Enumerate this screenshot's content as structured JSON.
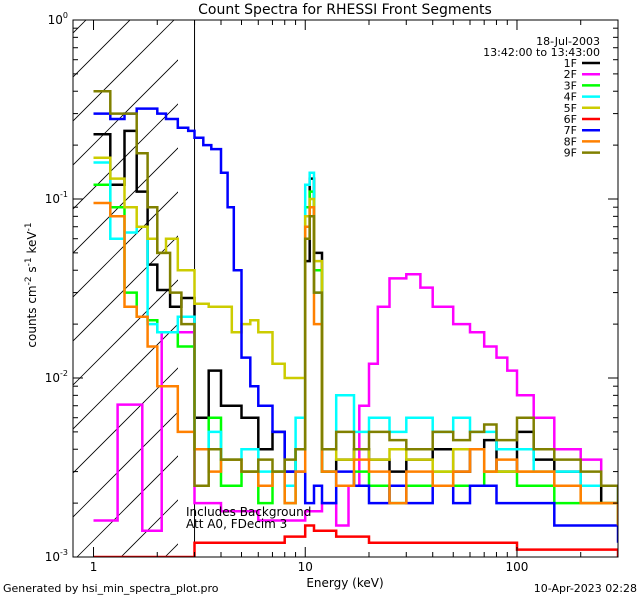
{
  "footer": {
    "generated_by": "Generated by hsi_min_spectra_plot.pro",
    "timestamp": "10-Apr-2023 02:28"
  },
  "chart_data": {
    "type": "line",
    "title": "Count Spectra for RHESSI Front Segments",
    "xlabel": "Energy (keV)",
    "ylabel_parts": {
      "a": "counts cm",
      "b": "-2",
      "c": " s",
      "d": "-1",
      "e": " keV",
      "f": "-1"
    },
    "x_scale": "log",
    "y_scale": "log",
    "xlim": [
      0.8,
      300
    ],
    "ylim": [
      0.001,
      1
    ],
    "x_ticks": [
      {
        "v": 1,
        "label": "1"
      },
      {
        "v": 10,
        "label": "10"
      },
      {
        "v": 100,
        "label": "100"
      }
    ],
    "y_ticks": [
      {
        "v": 0.001,
        "m": "10",
        "e": "-3"
      },
      {
        "v": 0.01,
        "m": "10",
        "e": "-2"
      },
      {
        "v": 0.1,
        "m": "10",
        "e": "-1"
      },
      {
        "v": 1,
        "m": "10",
        "e": "0"
      }
    ],
    "date": "18-Jul-2003",
    "time_range": "13:42:00 to 13:43:00",
    "annotation_lines": [
      "Includes Background",
      "Att A0, FDecim 3"
    ],
    "hatched_region_kev": [
      0.8,
      3.0
    ],
    "legend_position": "top-right",
    "series": [
      {
        "name": "1F",
        "color": "#000000",
        "x": [
          1.0,
          1.2,
          1.4,
          1.6,
          1.8,
          2.0,
          2.3,
          2.6,
          3.0,
          3.5,
          4.0,
          5.0,
          6.0,
          7.0,
          8.0,
          9.0,
          10,
          10.5,
          11,
          12,
          14,
          17,
          20,
          25,
          30,
          40,
          50,
          60,
          70,
          80,
          100,
          120,
          150,
          200,
          250,
          300
        ],
        "y": [
          0.23,
          0.12,
          0.24,
          0.11,
          0.043,
          0.031,
          0.025,
          0.028,
          0.006,
          0.011,
          0.007,
          0.006,
          0.004,
          0.005,
          0.003,
          0.004,
          0.045,
          0.13,
          0.05,
          0.003,
          0.0035,
          0.004,
          0.0035,
          0.003,
          0.0035,
          0.004,
          0.003,
          0.004,
          0.0045,
          0.003,
          0.005,
          0.0035,
          0.003,
          0.0025,
          0.002,
          0.0015
        ]
      },
      {
        "name": "2F",
        "color": "#ff00ff",
        "x": [
          1.0,
          1.3,
          1.5,
          1.7,
          1.9,
          2.1,
          3.0,
          4.0,
          6.0,
          8.0,
          10,
          12,
          14,
          16,
          18,
          20,
          22,
          25,
          30,
          35,
          40,
          50,
          60,
          70,
          80,
          90,
          100,
          120,
          150,
          200,
          250,
          300
        ],
        "y": [
          0.0016,
          0.0071,
          0.0071,
          0.0014,
          0.0014,
          0.018,
          0.002,
          0.0018,
          0.0016,
          0.0016,
          0.0018,
          0.002,
          0.0015,
          0.0025,
          0.007,
          0.012,
          0.025,
          0.036,
          0.038,
          0.032,
          0.025,
          0.02,
          0.018,
          0.015,
          0.013,
          0.011,
          0.008,
          0.006,
          0.004,
          0.0035,
          0.0025,
          0.002
        ]
      },
      {
        "name": "3F",
        "color": "#00ff00",
        "x": [
          1.0,
          1.2,
          1.4,
          1.6,
          1.8,
          2.0,
          2.5,
          3.0,
          3.5,
          4.0,
          5.0,
          6.0,
          7.0,
          8.0,
          9.0,
          10,
          10.5,
          11,
          12,
          14,
          17,
          20,
          25,
          30,
          40,
          50,
          70,
          100,
          150,
          200,
          300
        ],
        "y": [
          0.12,
          0.09,
          0.03,
          0.022,
          0.021,
          0.018,
          0.015,
          0.004,
          0.006,
          0.0025,
          0.003,
          0.002,
          0.003,
          0.002,
          0.004,
          0.09,
          0.11,
          0.04,
          0.003,
          0.0025,
          0.003,
          0.0025,
          0.002,
          0.0025,
          0.003,
          0.0025,
          0.003,
          0.0025,
          0.002,
          0.002,
          0.0015
        ]
      },
      {
        "name": "4F",
        "color": "#00ffff",
        "x": [
          1.0,
          1.2,
          1.4,
          1.6,
          1.8,
          2.0,
          2.5,
          3.0,
          3.5,
          4.0,
          5.0,
          6.0,
          7.0,
          8.0,
          9.0,
          10,
          10.5,
          11,
          12,
          14,
          17,
          20,
          25,
          30,
          40,
          50,
          60,
          70,
          80,
          100,
          120,
          150,
          200,
          300
        ],
        "y": [
          0.16,
          0.06,
          0.065,
          0.07,
          0.02,
          0.018,
          0.022,
          0.004,
          0.005,
          0.0035,
          0.004,
          0.003,
          0.003,
          0.0025,
          0.006,
          0.12,
          0.14,
          0.03,
          0.004,
          0.008,
          0.005,
          0.006,
          0.005,
          0.006,
          0.005,
          0.006,
          0.005,
          0.005,
          0.004,
          0.004,
          0.003,
          0.003,
          0.0025,
          0.0015
        ]
      },
      {
        "name": "5F",
        "color": "#cccc00",
        "x": [
          1.0,
          1.2,
          1.4,
          1.6,
          1.8,
          2.0,
          2.2,
          2.5,
          3.0,
          3.5,
          4.0,
          4.5,
          5.0,
          5.5,
          6.0,
          7.0,
          8.0,
          9.0,
          10,
          10.5,
          11,
          12,
          14,
          17,
          20,
          25,
          30,
          40,
          50,
          70,
          100,
          150,
          200,
          300
        ],
        "y": [
          0.17,
          0.13,
          0.09,
          0.07,
          0.06,
          0.05,
          0.06,
          0.04,
          0.026,
          0.025,
          0.025,
          0.018,
          0.02,
          0.021,
          0.018,
          0.012,
          0.01,
          0.01,
          0.08,
          0.1,
          0.045,
          0.004,
          0.0035,
          0.004,
          0.0035,
          0.004,
          0.0035,
          0.003,
          0.004,
          0.003,
          0.003,
          0.0025,
          0.002,
          0.0015
        ]
      },
      {
        "name": "6F",
        "color": "#ff0000",
        "x": [
          1.0,
          1.5,
          2.0,
          3.0,
          5.0,
          8.0,
          10,
          11,
          14,
          20,
          30,
          50,
          100,
          200,
          300
        ],
        "y": [
          0.001,
          0.001,
          0.001,
          0.0012,
          0.0012,
          0.0013,
          0.0015,
          0.0014,
          0.0013,
          0.0012,
          0.0012,
          0.0012,
          0.0011,
          0.0011,
          0.001
        ]
      },
      {
        "name": "7F",
        "color": "#0000ff",
        "x": [
          1.0,
          1.2,
          1.4,
          1.6,
          1.8,
          2.0,
          2.2,
          2.5,
          2.8,
          3.0,
          3.3,
          3.6,
          4.0,
          4.3,
          4.6,
          5.0,
          5.5,
          6.0,
          7.0,
          8.0,
          9.0,
          10,
          11,
          12,
          14,
          17,
          20,
          25,
          30,
          40,
          50,
          60,
          80,
          100,
          150,
          200,
          300
        ],
        "y": [
          0.3,
          0.28,
          0.3,
          0.32,
          0.32,
          0.3,
          0.28,
          0.25,
          0.24,
          0.22,
          0.2,
          0.19,
          0.14,
          0.09,
          0.04,
          0.013,
          0.009,
          0.007,
          0.005,
          0.003,
          0.003,
          0.002,
          0.0025,
          0.002,
          0.003,
          0.0025,
          0.002,
          0.0025,
          0.002,
          0.0025,
          0.002,
          0.0025,
          0.002,
          0.002,
          0.0015,
          0.0015,
          0.0012
        ]
      },
      {
        "name": "8F",
        "color": "#ff8000",
        "x": [
          1.0,
          1.2,
          1.4,
          1.6,
          1.8,
          2.0,
          2.5,
          3.0,
          3.5,
          4.0,
          5.0,
          6.0,
          7.0,
          8.0,
          9.0,
          10,
          10.5,
          11,
          12,
          14,
          17,
          20,
          25,
          30,
          40,
          50,
          60,
          70,
          80,
          100,
          150,
          200,
          300
        ],
        "y": [
          0.095,
          0.08,
          0.025,
          0.022,
          0.015,
          0.009,
          0.005,
          0.004,
          0.003,
          0.0035,
          0.003,
          0.0025,
          0.003,
          0.002,
          0.003,
          0.07,
          0.09,
          0.02,
          0.003,
          0.0025,
          0.0035,
          0.003,
          0.002,
          0.003,
          0.0025,
          0.003,
          0.004,
          0.003,
          0.0035,
          0.003,
          0.0025,
          0.002,
          0.0015
        ]
      },
      {
        "name": "9F",
        "color": "#808000",
        "x": [
          1.0,
          1.2,
          1.4,
          1.6,
          1.8,
          2.0,
          2.3,
          2.6,
          3.0,
          3.5,
          4.0,
          5.0,
          6.0,
          7.0,
          8.0,
          9.0,
          10,
          10.5,
          11,
          12,
          14,
          17,
          20,
          25,
          30,
          40,
          50,
          60,
          70,
          80,
          100,
          120,
          150,
          200,
          250,
          300
        ],
        "y": [
          0.4,
          0.3,
          0.3,
          0.18,
          0.09,
          0.05,
          0.03,
          0.02,
          0.0025,
          0.004,
          0.0035,
          0.003,
          0.0035,
          0.003,
          0.0035,
          0.004,
          0.06,
          0.08,
          0.03,
          0.004,
          0.005,
          0.004,
          0.005,
          0.0045,
          0.004,
          0.005,
          0.0045,
          0.005,
          0.0055,
          0.0045,
          0.006,
          0.004,
          0.0035,
          0.003,
          0.0025,
          0.002
        ]
      }
    ]
  }
}
